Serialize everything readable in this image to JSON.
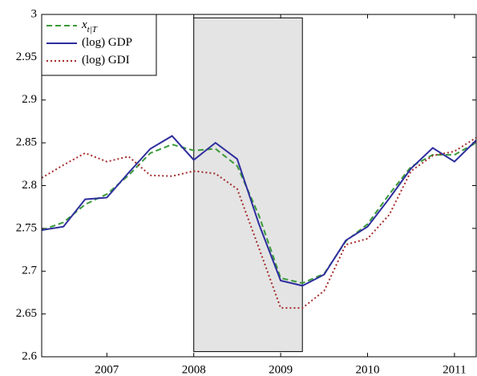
{
  "chart_data": {
    "type": "line",
    "x": [
      2006.25,
      2006.5,
      2006.75,
      2007,
      2007.25,
      2007.5,
      2007.75,
      2008,
      2008.25,
      2008.5,
      2008.75,
      2009,
      2009.25,
      2009.5,
      2009.75,
      2010,
      2010.25,
      2010.5,
      2010.75,
      2011,
      2011.25
    ],
    "series": [
      {
        "name": "x",
        "name_subscript": "t|T",
        "color": "#3a9a3a",
        "style": "dashed",
        "values": [
          2.748,
          2.757,
          2.778,
          2.79,
          2.812,
          2.838,
          2.848,
          2.841,
          2.843,
          2.823,
          2.765,
          2.692,
          2.686,
          2.697,
          2.735,
          2.755,
          2.79,
          2.822,
          2.836,
          2.836,
          2.85
        ]
      },
      {
        "name": "(log) GDP",
        "color": "#2e2e9e",
        "style": "solid",
        "values": [
          2.748,
          2.752,
          2.784,
          2.786,
          2.815,
          2.843,
          2.858,
          2.83,
          2.85,
          2.831,
          2.755,
          2.689,
          2.683,
          2.696,
          2.736,
          2.752,
          2.785,
          2.82,
          2.844,
          2.828,
          2.853
        ]
      },
      {
        "name": "(log) GDI",
        "color": "#a52a2a",
        "style": "dotted",
        "values": [
          2.809,
          2.824,
          2.838,
          2.828,
          2.834,
          2.812,
          2.811,
          2.817,
          2.814,
          2.796,
          2.727,
          2.657,
          2.657,
          2.677,
          2.731,
          2.738,
          2.766,
          2.817,
          2.835,
          2.84,
          2.856
        ]
      }
    ],
    "shade": {
      "x": [
        2008,
        2009.25
      ],
      "y": [
        2.606,
        2.996
      ],
      "color": "#e4e4e4"
    },
    "xlim": [
      2006.25,
      2011.25
    ],
    "xticks": [
      2007,
      2008,
      2009,
      2010,
      2011
    ],
    "ylim": [
      2.6,
      3
    ],
    "yticks": [
      2.6,
      2.65,
      2.7,
      2.75,
      2.8,
      2.85,
      2.9,
      2.95,
      3
    ],
    "legend": "upper left",
    "grid": false
  }
}
